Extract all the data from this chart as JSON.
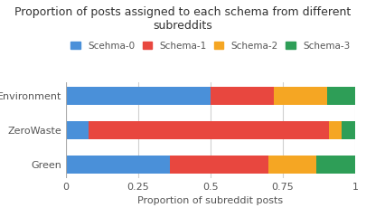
{
  "title": "Proportion of posts assigned to each schema from different\nsubreddits",
  "xlabel": "Proportion of subreddit posts",
  "categories": [
    "Green",
    "ZeroWaste",
    "Environment"
  ],
  "schemas": [
    "Scehma-0",
    "Schema-1",
    "Schema-2",
    "Schema-3"
  ],
  "values": {
    "Environment": [
      0.5,
      0.22,
      0.185,
      0.095
    ],
    "ZeroWaste": [
      0.08,
      0.83,
      0.045,
      0.045
    ],
    "Green": [
      0.36,
      0.34,
      0.165,
      0.135
    ]
  },
  "colors": [
    "#4A90D9",
    "#E8473F",
    "#F5A623",
    "#2E9E57"
  ],
  "background_color": "#FFFFFF",
  "bar_height": 0.52,
  "xlim": [
    0,
    1
  ],
  "xticks": [
    0,
    0.25,
    0.5,
    0.75,
    1
  ],
  "xtick_labels": [
    "0",
    "0.25",
    "0.5",
    "0.75",
    "1"
  ],
  "title_fontsize": 9.0,
  "legend_fontsize": 7.5,
  "tick_fontsize": 8,
  "xlabel_fontsize": 8,
  "grid_color": "#D0D0D0"
}
